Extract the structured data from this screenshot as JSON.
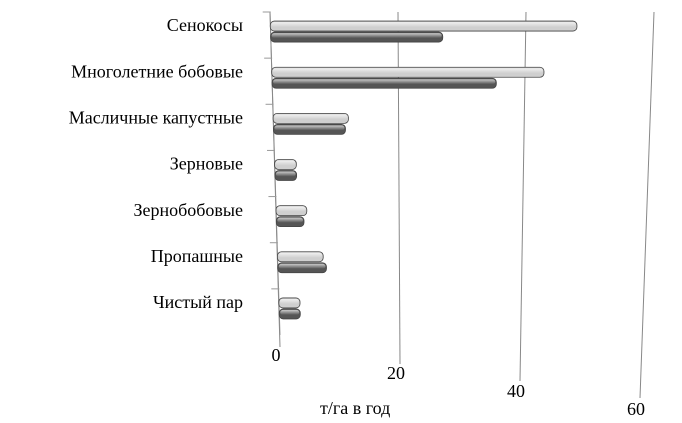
{
  "chart_data": {
    "type": "bar",
    "orientation": "horizontal",
    "categories": [
      "Сенокосы",
      "Многолетние бобовые",
      "Масличные капустные",
      "Зерновые",
      "Зернобобовые",
      "Пропашные",
      "Чистый пар"
    ],
    "series": [
      {
        "color": "#cfcfcf",
        "values": [
          48,
          43,
          12,
          3.5,
          5,
          7.5,
          3.5
        ]
      },
      {
        "color": "#555555",
        "values": [
          27,
          35.5,
          11.5,
          3.5,
          4.5,
          8,
          3.5
        ]
      }
    ],
    "xlim": [
      0,
      60
    ],
    "xticks": [
      0,
      20,
      40,
      60
    ],
    "xlabel": "т/га в год",
    "grid": true
  }
}
